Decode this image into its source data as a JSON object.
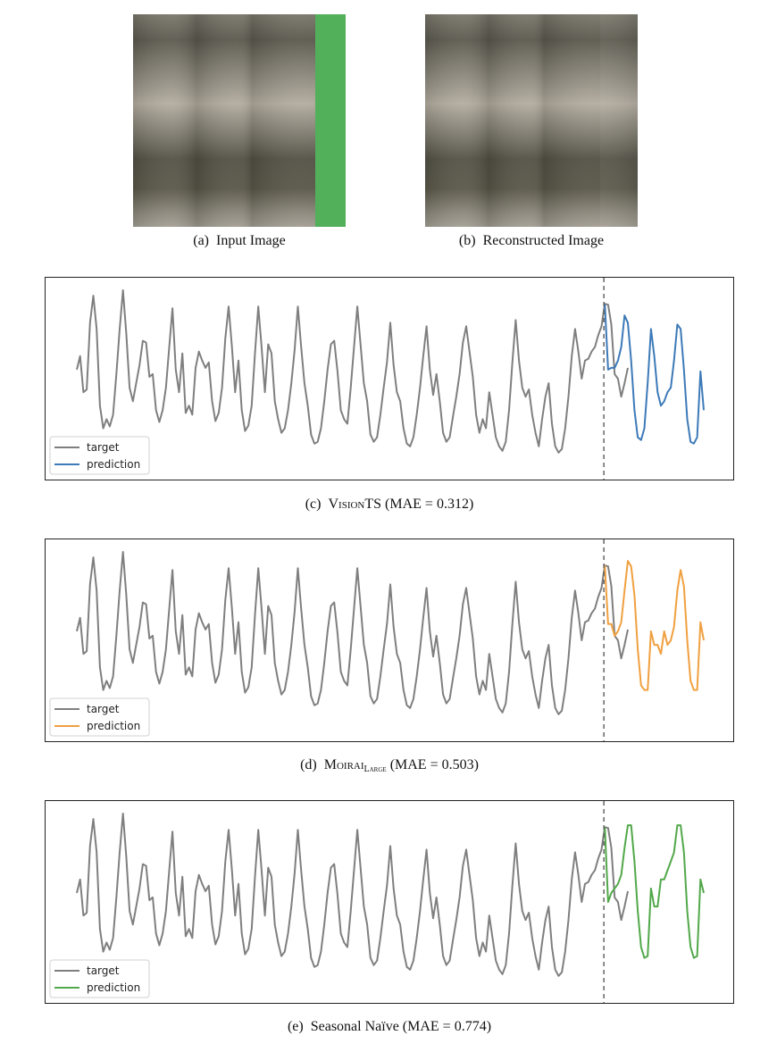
{
  "panels": {
    "a": {
      "caption_label": "(a)",
      "caption_text": "Input Image",
      "mask_color": "#52b05a"
    },
    "b": {
      "caption_label": "(b)",
      "caption_text": "Reconstructed Image"
    }
  },
  "legend": {
    "target": "target",
    "prediction": "prediction"
  },
  "captions": {
    "c": {
      "label": "(c)",
      "name": "VisionTS",
      "metric": "(MAE = 0.312)"
    },
    "d": {
      "label": "(d)",
      "name": "Moirai",
      "name_sub": "Large",
      "metric": "(MAE = 0.503)"
    },
    "e": {
      "label": "(e)",
      "name": "Seasonal Naïve",
      "metric": "(MAE = 0.774)"
    }
  },
  "colors": {
    "target": "#7f7f7f",
    "c": "#3d7ab8",
    "d": "#f0a040",
    "e": "#52a84a",
    "divider": "#666666"
  },
  "chart_data": [
    {
      "type": "line",
      "id": "c",
      "series": [
        {
          "name": "target",
          "values": [
            0.1,
            0.25,
            -0.15,
            -0.12,
            0.62,
            0.92,
            0.55,
            -0.3,
            -0.55,
            -0.45,
            -0.53,
            -0.4,
            0.05,
            0.55,
            0.98,
            0.5,
            -0.1,
            -0.25,
            -0.05,
            0.15,
            0.42,
            0.4,
            0.02,
            0.05,
            -0.35,
            -0.48,
            -0.35,
            -0.1,
            0.35,
            0.78,
            0.1,
            -0.15,
            0.28,
            -0.38,
            -0.3,
            -0.4,
            0.12,
            0.3,
            0.2,
            0.12,
            0.18,
            -0.25,
            -0.47,
            -0.38,
            -0.1,
            0.45,
            0.8,
            0.35,
            -0.15,
            0.2,
            -0.35,
            -0.58,
            -0.52,
            -0.3,
            0.28,
            0.8,
            0.35,
            -0.15,
            0.38,
            0.28,
            -0.25,
            -0.45,
            -0.6,
            -0.55,
            -0.35,
            -0.05,
            0.32,
            0.8,
            0.35,
            -0.05,
            -0.3,
            -0.62,
            -0.72,
            -0.7,
            -0.55,
            -0.25,
            0.1,
            0.38,
            0.42,
            0.08,
            -0.35,
            -0.45,
            -0.5,
            -0.1,
            0.35,
            0.8,
            0.38,
            -0.05,
            -0.25,
            -0.62,
            -0.7,
            -0.65,
            -0.4,
            -0.1,
            0.18,
            0.62,
            0.15,
            -0.15,
            -0.25,
            -0.55,
            -0.72,
            -0.75,
            -0.65,
            -0.4,
            -0.1,
            0.25,
            0.58,
            0.1,
            -0.18,
            0.05,
            -0.25,
            -0.6,
            -0.7,
            -0.65,
            -0.42,
            -0.2,
            0.05,
            0.4,
            0.58,
            0.3,
            0.02,
            -0.4,
            -0.6,
            -0.45,
            -0.55,
            -0.15,
            -0.4,
            -0.65,
            -0.75,
            -0.8,
            -0.7,
            -0.35,
            0.18,
            0.65,
            0.2,
            -0.1,
            -0.2,
            -0.12,
            -0.4,
            -0.6,
            -0.75,
            -0.45,
            -0.2,
            -0.05,
            -0.5,
            -0.75,
            -0.82,
            -0.78,
            -0.55,
            -0.2,
            0.25,
            0.55,
            0.3,
            0.0,
            0.2,
            0.22,
            0.3,
            0.35,
            0.48,
            0.58,
            0.83,
            0.82,
            0.6,
            0.05,
            0.0,
            -0.2,
            -0.05,
            0.12
          ]
        },
        {
          "name": "prediction",
          "values": [
            0.1,
            0.12,
            0.12,
            0.2,
            0.35,
            0.7,
            0.62,
            0.2,
            -0.35,
            -0.65,
            -0.68,
            -0.55,
            -0.05,
            0.55,
            0.25,
            -0.15,
            -0.3,
            -0.25,
            -0.15,
            -0.1,
            0.2,
            0.6,
            0.55,
            0.1,
            -0.45,
            -0.7,
            -0.72,
            -0.65,
            0.08,
            -0.35
          ]
        }
      ],
      "forecast_start": 161,
      "ylim": [
        -1,
        1
      ]
    },
    {
      "type": "line",
      "id": "d",
      "series": [
        {
          "name": "target",
          "values": "same as chart c target"
        },
        {
          "name": "prediction",
          "values": [
            0.18,
            0.18,
            0.05,
            0.1,
            0.2,
            0.55,
            0.88,
            0.82,
            0.5,
            -0.1,
            -0.5,
            -0.55,
            -0.55,
            0.1,
            -0.05,
            -0.05,
            -0.15,
            0.1,
            -0.05,
            0.0,
            0.15,
            0.55,
            0.78,
            0.6,
            0.0,
            -0.45,
            -0.55,
            -0.55,
            0.2,
            0.0
          ]
        }
      ],
      "forecast_start": 161,
      "ylim": [
        -1,
        1
      ]
    },
    {
      "type": "line",
      "id": "e",
      "series": [
        {
          "name": "target",
          "values": "same as chart c target"
        },
        {
          "name": "prediction",
          "values": [
            0.0,
            0.1,
            0.15,
            0.2,
            0.3,
            0.6,
            0.85,
            0.85,
            0.45,
            -0.1,
            -0.5,
            -0.62,
            -0.6,
            0.15,
            -0.05,
            -0.05,
            0.25,
            0.25,
            0.35,
            0.45,
            0.55,
            0.85,
            0.85,
            0.55,
            -0.1,
            -0.5,
            -0.62,
            -0.6,
            0.25,
            0.1
          ]
        }
      ],
      "forecast_start": 161,
      "ylim": [
        -1,
        1
      ]
    }
  ]
}
